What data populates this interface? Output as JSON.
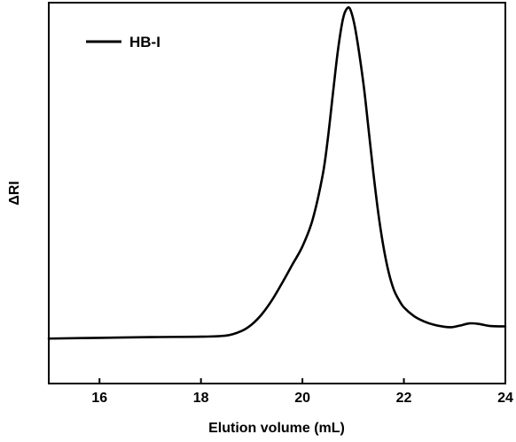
{
  "chart_data": {
    "type": "line",
    "title": "",
    "xlabel": "Elution volume (mL)",
    "ylabel": "ΔRI",
    "xlim": [
      15,
      24
    ],
    "ylim": [
      0,
      1
    ],
    "x_ticks": [
      16,
      18,
      20,
      22,
      24
    ],
    "x_tick_labels": [
      "16",
      "18",
      "20",
      "22",
      "24"
    ],
    "y_ticks_visible": false,
    "grid": false,
    "legend": {
      "position": "top-left"
    },
    "series": [
      {
        "name": "HB-I",
        "color": "#000000",
        "points": [
          [
            15.0,
            0.118
          ],
          [
            16.0,
            0.12
          ],
          [
            17.0,
            0.122
          ],
          [
            18.0,
            0.123
          ],
          [
            18.5,
            0.126
          ],
          [
            18.8,
            0.138
          ],
          [
            19.0,
            0.155
          ],
          [
            19.2,
            0.182
          ],
          [
            19.4,
            0.219
          ],
          [
            19.6,
            0.264
          ],
          [
            19.8,
            0.312
          ],
          [
            20.0,
            0.36
          ],
          [
            20.2,
            0.43
          ],
          [
            20.4,
            0.548
          ],
          [
            20.5,
            0.642
          ],
          [
            20.6,
            0.76
          ],
          [
            20.7,
            0.875
          ],
          [
            20.8,
            0.958
          ],
          [
            20.88,
            0.985
          ],
          [
            20.95,
            0.98
          ],
          [
            21.05,
            0.925
          ],
          [
            21.2,
            0.79
          ],
          [
            21.3,
            0.672
          ],
          [
            21.4,
            0.551
          ],
          [
            21.5,
            0.443
          ],
          [
            21.6,
            0.357
          ],
          [
            21.7,
            0.292
          ],
          [
            21.8,
            0.247
          ],
          [
            21.9,
            0.22
          ],
          [
            22.0,
            0.2
          ],
          [
            22.2,
            0.177
          ],
          [
            22.4,
            0.163
          ],
          [
            22.6,
            0.154
          ],
          [
            22.8,
            0.149
          ],
          [
            22.95,
            0.148
          ],
          [
            23.1,
            0.152
          ],
          [
            23.3,
            0.158
          ],
          [
            23.5,
            0.156
          ],
          [
            23.7,
            0.151
          ],
          [
            24.0,
            0.15
          ]
        ]
      }
    ]
  }
}
